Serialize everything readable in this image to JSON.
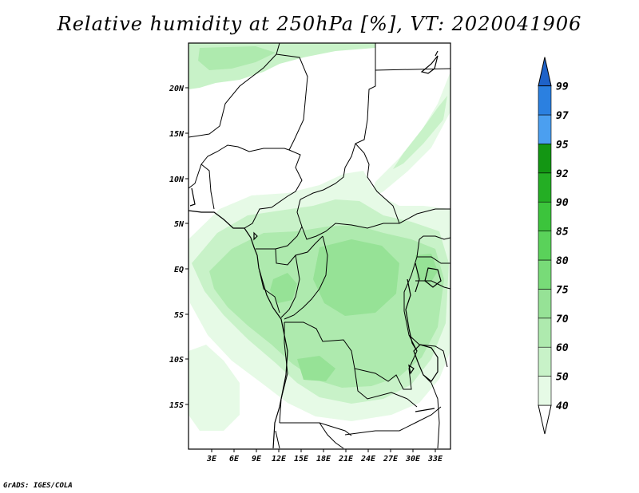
{
  "title": "Relative humidity at 250hPa [%], VT: 2020041906",
  "credit": "GrADS: IGES/COLA",
  "map": {
    "lat_labels": [
      "20N",
      "15N",
      "10N",
      "5N",
      "EQ",
      "5S",
      "10S",
      "15S"
    ],
    "lon_labels": [
      "3E",
      "6E",
      "9E",
      "12E",
      "15E",
      "18E",
      "21E",
      "24E",
      "27E",
      "30E",
      "33E"
    ]
  },
  "colorbar": {
    "levels": [
      "40",
      "50",
      "60",
      "70",
      "75",
      "80",
      "85",
      "90",
      "92",
      "95",
      "97",
      "99"
    ],
    "colors": [
      "#e6fae6",
      "#c8f2c8",
      "#aeeaae",
      "#96e296",
      "#78db78",
      "#5ad25a",
      "#3cc43c",
      "#24ae24",
      "#139613",
      "#4b9ff0",
      "#2b80e0",
      "#1e62c8"
    ],
    "under_color": "#ffffff"
  }
}
